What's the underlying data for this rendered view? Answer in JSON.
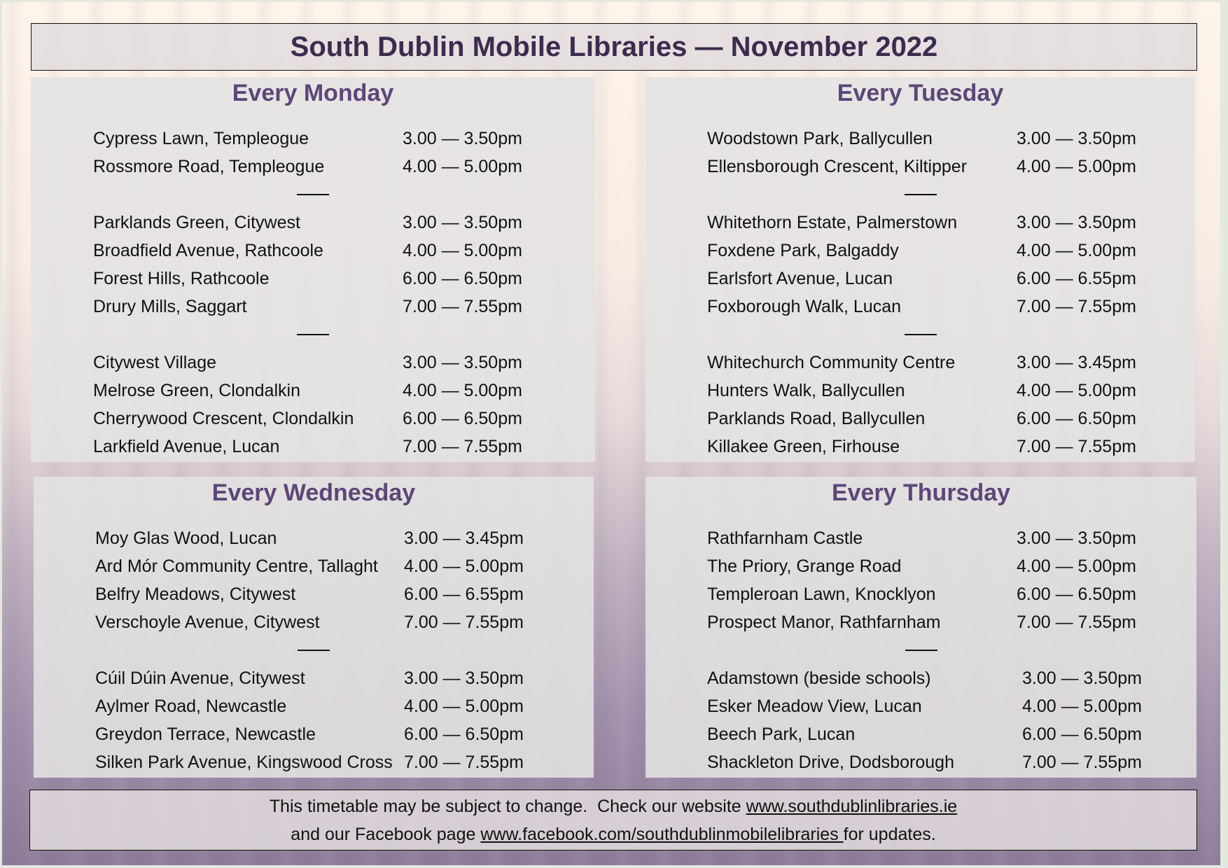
{
  "title": "South Dublin Mobile Libraries  —  November 2022",
  "days": [
    {
      "heading": "Every Monday",
      "groups": [
        [
          [
            "Cypress Lawn, Templeogue",
            "3.00 — 3.50pm"
          ],
          [
            "Rossmore Road, Templeogue",
            "4.00 — 5.00pm"
          ]
        ],
        [
          [
            "Parklands Green, Citywest",
            "3.00 — 3.50pm"
          ],
          [
            "Broadfield Avenue, Rathcoole",
            "4.00 — 5.00pm"
          ],
          [
            "Forest Hills, Rathcoole",
            "6.00 — 6.50pm"
          ],
          [
            "Drury Mills, Saggart",
            "7.00 — 7.55pm"
          ]
        ],
        [
          [
            "Citywest Village",
            "3.00 — 3.50pm"
          ],
          [
            "Melrose Green, Clondalkin",
            "4.00 — 5.00pm"
          ],
          [
            "Cherrywood Crescent, Clondalkin",
            "6.00 — 6.50pm"
          ],
          [
            "Larkfield Avenue, Lucan",
            "7.00 — 7.55pm"
          ]
        ]
      ]
    },
    {
      "heading": "Every Tuesday",
      "groups": [
        [
          [
            "Woodstown Park, Ballycullen",
            "3.00 — 3.50pm"
          ],
          [
            "Ellensborough Crescent, Kiltipper",
            "4.00 — 5.00pm"
          ]
        ],
        [
          [
            "Whitethorn Estate, Palmerstown",
            "3.00 — 3.50pm"
          ],
          [
            "Foxdene Park, Balgaddy",
            "4.00 — 5.00pm"
          ],
          [
            "Earlsfort Avenue, Lucan",
            "6.00 — 6.55pm"
          ],
          [
            "Foxborough Walk, Lucan",
            "7.00 — 7.55pm"
          ]
        ],
        [
          [
            "Whitechurch Community Centre",
            "3.00 — 3.45pm"
          ],
          [
            "Hunters Walk, Ballycullen",
            "4.00 — 5.00pm"
          ],
          [
            "Parklands Road, Ballycullen",
            "6.00 — 6.50pm"
          ],
          [
            "Killakee Green, Firhouse",
            "7.00 — 7.55pm"
          ]
        ]
      ]
    },
    {
      "heading": "Every Wednesday",
      "groups": [
        [
          [
            "Moy Glas Wood, Lucan",
            "3.00 — 3.45pm"
          ],
          [
            "Ard Mór Community Centre, Tallaght",
            "4.00 — 5.00pm"
          ],
          [
            "Belfry Meadows, Citywest",
            "6.00 — 6.55pm"
          ],
          [
            "Verschoyle Avenue, Citywest",
            "7.00 — 7.55pm"
          ]
        ],
        [
          [
            "Cúil Dúin Avenue, Citywest",
            "3.00 — 3.50pm"
          ],
          [
            "Aylmer Road, Newcastle",
            "4.00 — 5.00pm"
          ],
          [
            "Greydon Terrace, Newcastle",
            "6.00 — 6.50pm"
          ],
          [
            "Silken Park Avenue, Kingswood Cross",
            "7.00 — 7.55pm"
          ]
        ]
      ]
    },
    {
      "heading": "Every Thursday",
      "groups": [
        [
          [
            "Rathfarnham Castle",
            "3.00 — 3.50pm"
          ],
          [
            "The Priory, Grange Road",
            "4.00 — 5.00pm"
          ],
          [
            "Templeroan Lawn, Knocklyon",
            "6.00 — 6.50pm"
          ],
          [
            "Prospect Manor, Rathfarnham",
            "7.00 — 7.55pm"
          ]
        ],
        [
          [
            "Adamstown (beside schools)",
            "3.00 — 3.50pm"
          ],
          [
            "Esker Meadow View, Lucan",
            "4.00 — 5.00pm"
          ],
          [
            "Beech Park, Lucan",
            "6.00 — 6.50pm"
          ],
          [
            "Shackleton Drive, Dodsborough",
            "7.00 — 7.55pm"
          ]
        ]
      ]
    }
  ],
  "footer": {
    "line1_text": "This timetable may be subject to change.  Check our website ",
    "website_link": "www.southdublinlibraries.ie",
    "line2_text": "and our Facebook page ",
    "facebook_link": "www.facebook.com/southdublinmobilelibraries ",
    "line2_end": "for updates."
  },
  "colors": {
    "title": "#3d2b4e",
    "heading": "#5d4678"
  }
}
